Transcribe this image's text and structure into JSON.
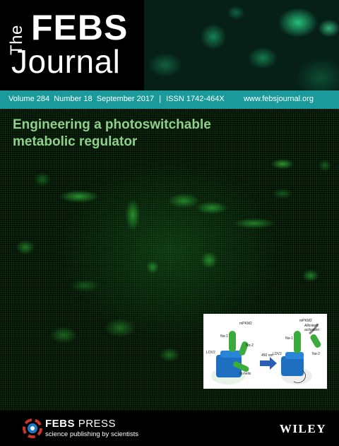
{
  "masthead": {
    "the": "The",
    "febs": "FEBS",
    "journal": "Journal"
  },
  "infobar": {
    "volume": "Volume 284",
    "number": "Number 18",
    "date": "September 2017",
    "separator": "|",
    "issn": "ISSN 1742-464X",
    "website": "www.febsjournal.org"
  },
  "headline": {
    "line1": "Engineering a photoswitchable",
    "line2": "metabolic regulator"
  },
  "inset": {
    "left": {
      "mpkm2": "mPKM2",
      "n1": "Nα-1",
      "n2": "Nα-2",
      "lov2": "LOV2",
      "ja": "Jα-helix"
    },
    "arrow": "450 nm",
    "right": {
      "mpkm2": "mPKM2",
      "allosteric": "Allosteric",
      "activation": "activation",
      "n1": "Nα-1",
      "n2": "Nα-2",
      "lov2": "LOV2"
    }
  },
  "footer": {
    "febs": "FEBS",
    "press": "PRESS",
    "tagline": "science publishing by scientists",
    "publisher": "WILEY"
  },
  "colors": {
    "teal_bar": "#1a9a9a",
    "headline_green": "#8fd18a",
    "helix_green": "#3bab3b",
    "lov_blue": "#1f6fc0"
  }
}
